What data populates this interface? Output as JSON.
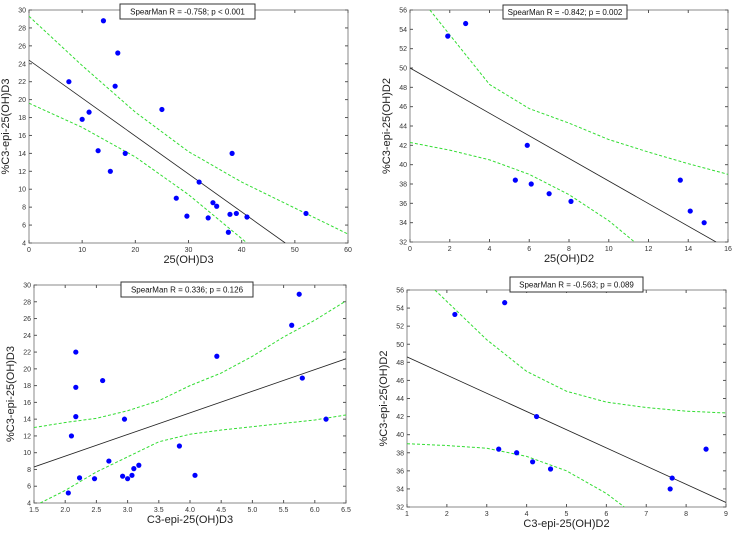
{
  "chart_data": [
    {
      "type": "scatter",
      "annotation": "SpearMan R = -0.758; p < 0.001",
      "xlabel": "25(OH)D3",
      "ylabel": "%C3-epi-25(OH)D3",
      "xlim": [
        0,
        60
      ],
      "ylim": [
        4,
        30
      ],
      "xstep": 10,
      "ystep": 2,
      "xdec": 0,
      "points": [
        [
          14,
          28.8
        ],
        [
          16.7,
          25.2
        ],
        [
          7.5,
          22
        ],
        [
          16.2,
          21.5
        ],
        [
          25,
          18.9
        ],
        [
          11.3,
          18.6
        ],
        [
          10,
          17.8
        ],
        [
          13,
          14.3
        ],
        [
          18.1,
          14
        ],
        [
          38.2,
          14
        ],
        [
          15.3,
          12
        ],
        [
          32,
          10.8
        ],
        [
          27.7,
          9
        ],
        [
          34.6,
          8.5
        ],
        [
          35.3,
          8.1
        ],
        [
          29.7,
          7
        ],
        [
          33.7,
          6.8
        ],
        [
          37.8,
          7.2
        ],
        [
          39,
          7.3
        ],
        [
          41,
          6.9
        ],
        [
          52.1,
          7.3
        ],
        [
          37.5,
          5.2
        ]
      ],
      "fit": [
        [
          0,
          24.4
        ],
        [
          48.2,
          4
        ]
      ],
      "ci_upper": [
        [
          0,
          29.3
        ],
        [
          10,
          23.8
        ],
        [
          20,
          18.6
        ],
        [
          30,
          14.2
        ],
        [
          40,
          10.8
        ],
        [
          50,
          7.9
        ],
        [
          60,
          5
        ]
      ],
      "ci_lower": [
        [
          0,
          19.6
        ],
        [
          10,
          16.9
        ],
        [
          20,
          13.6
        ],
        [
          30,
          9.4
        ],
        [
          41,
          4
        ]
      ]
    },
    {
      "type": "scatter",
      "annotation": "SpearMan R = -0.842; p = 0.002",
      "xlabel": "25(OH)D2",
      "ylabel": "%C3-epi-25(OH)D2",
      "xlim": [
        0,
        16
      ],
      "ylim": [
        32,
        56
      ],
      "xstep": 2,
      "ystep": 2,
      "xdec": 0,
      "points": [
        [
          1.9,
          53.3
        ],
        [
          2.8,
          54.6
        ],
        [
          5.9,
          42
        ],
        [
          5.3,
          38.4
        ],
        [
          6.1,
          38
        ],
        [
          7,
          37
        ],
        [
          8.1,
          36.2
        ],
        [
          13.6,
          38.4
        ],
        [
          14.1,
          35.2
        ],
        [
          14.8,
          34
        ]
      ],
      "fit": [
        [
          0,
          50
        ],
        [
          15.4,
          32
        ]
      ],
      "ci_upper": [
        [
          1,
          56
        ],
        [
          4,
          48.3
        ],
        [
          6,
          45.8
        ],
        [
          8,
          44.3
        ],
        [
          10,
          42.6
        ],
        [
          12,
          41.3
        ],
        [
          14,
          40.1
        ],
        [
          16,
          39
        ]
      ],
      "ci_lower": [
        [
          0,
          42.3
        ],
        [
          2,
          41.5
        ],
        [
          4,
          40.5
        ],
        [
          6,
          39
        ],
        [
          8,
          36.9
        ],
        [
          10,
          34.2
        ],
        [
          11.3,
          32
        ]
      ]
    },
    {
      "type": "scatter",
      "annotation": "SpearMan R = 0.336; p = 0.126",
      "xlabel": "C3-epi-25(OH)D3",
      "ylabel": "%C3-epi-25(OH)D3",
      "xlim": [
        1.5,
        6.5
      ],
      "ylim": [
        4,
        30
      ],
      "xstep": 0.5,
      "ystep": 2,
      "xdec": 1,
      "points": [
        [
          2.17,
          22
        ],
        [
          2.17,
          17.8
        ],
        [
          2.17,
          14.3
        ],
        [
          2.1,
          12
        ],
        [
          2.05,
          5.2
        ],
        [
          2.23,
          7
        ],
        [
          2.47,
          6.9
        ],
        [
          2.6,
          18.6
        ],
        [
          2.7,
          9
        ],
        [
          2.92,
          7.2
        ],
        [
          2.95,
          14
        ],
        [
          3,
          6.9
        ],
        [
          3.07,
          7.3
        ],
        [
          3.1,
          8.1
        ],
        [
          3.18,
          8.5
        ],
        [
          3.83,
          10.8
        ],
        [
          4.08,
          7.3
        ],
        [
          4.43,
          21.5
        ],
        [
          5.63,
          25.2
        ],
        [
          5.75,
          28.9
        ],
        [
          5.8,
          18.9
        ],
        [
          6.18,
          14
        ]
      ],
      "fit": [
        [
          1.5,
          8.3
        ],
        [
          6.5,
          21.2
        ]
      ],
      "ci_upper": [
        [
          1.5,
          13
        ],
        [
          2,
          13.6
        ],
        [
          2.5,
          14.1
        ],
        [
          3,
          15
        ],
        [
          3.5,
          16.2
        ],
        [
          4,
          18
        ],
        [
          4.5,
          19.5
        ],
        [
          5,
          21.5
        ],
        [
          5.5,
          23.8
        ],
        [
          6,
          25.8
        ],
        [
          6.5,
          28.1
        ]
      ],
      "ci_lower": [
        [
          1.6,
          4
        ],
        [
          2,
          5.5
        ],
        [
          2.5,
          7.7
        ],
        [
          3,
          9.5
        ],
        [
          3.5,
          11.3
        ],
        [
          4,
          12.2
        ],
        [
          4.5,
          12.7
        ],
        [
          5,
          13.1
        ],
        [
          5.5,
          13.5
        ],
        [
          6,
          13.9
        ],
        [
          6.5,
          14.5
        ]
      ]
    },
    {
      "type": "scatter",
      "annotation": "SpearMan R = -0.563; p = 0.089",
      "xlabel": "C3-epi-25(OH)D2",
      "ylabel": "%C3-epi-25(OH)D2",
      "xlim": [
        1,
        9
      ],
      "ylim": [
        32,
        56
      ],
      "xstep": 1,
      "ystep": 2,
      "xdec": 0,
      "points": [
        [
          2.2,
          53.3
        ],
        [
          3.45,
          54.6
        ],
        [
          4.25,
          42
        ],
        [
          3.3,
          38.4
        ],
        [
          3.75,
          38
        ],
        [
          4.15,
          37
        ],
        [
          4.6,
          36.2
        ],
        [
          7.6,
          34
        ],
        [
          7.65,
          35.2
        ],
        [
          8.5,
          38.4
        ]
      ],
      "fit": [
        [
          1,
          48.6
        ],
        [
          9,
          32.5
        ]
      ],
      "ci_upper": [
        [
          1.7,
          56
        ],
        [
          3,
          50.5
        ],
        [
          4,
          47
        ],
        [
          5,
          44.8
        ],
        [
          6,
          43.6
        ],
        [
          7,
          43
        ],
        [
          8,
          42.6
        ],
        [
          9,
          42.4
        ]
      ],
      "ci_lower": [
        [
          1,
          39
        ],
        [
          2,
          38.8
        ],
        [
          3,
          38.5
        ],
        [
          4,
          37.6
        ],
        [
          5,
          36
        ],
        [
          6,
          33.5
        ],
        [
          6.45,
          32
        ]
      ]
    }
  ],
  "colors": {
    "points": "#0000ff",
    "fit": "#222222",
    "ci": "#33dd33"
  }
}
